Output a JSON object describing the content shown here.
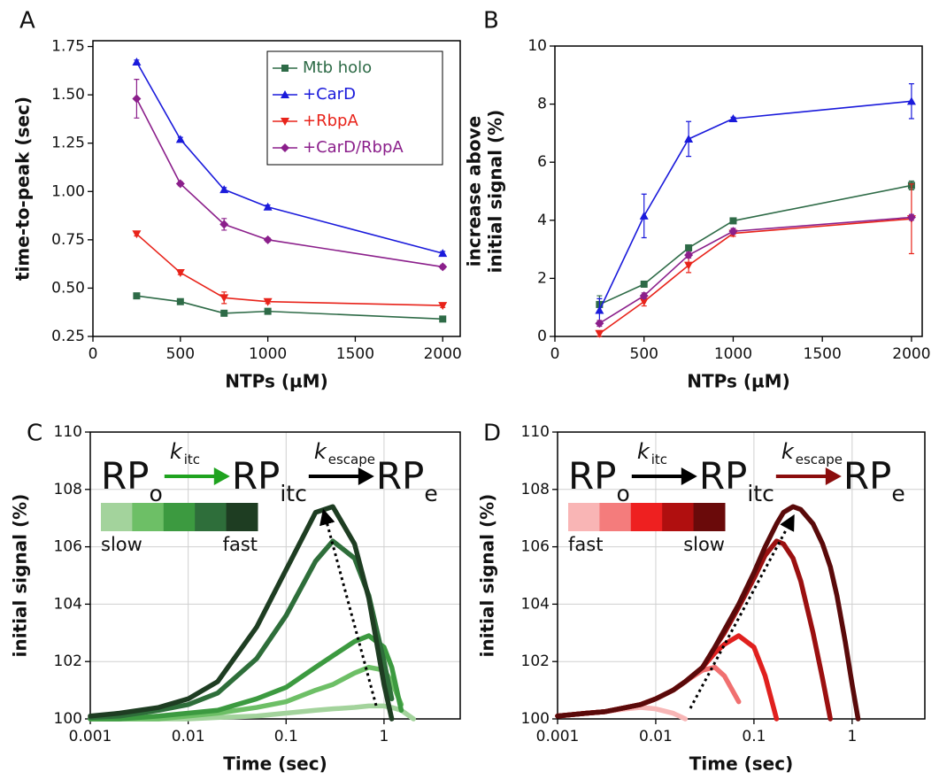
{
  "chart_data": [
    {
      "type": "line",
      "panel": "A",
      "ylabel": [
        "time-to-peak (sec)"
      ],
      "xlabel": "NTPs (µM)",
      "x": [
        250,
        500,
        750,
        1000,
        2000
      ],
      "xlim": [
        0,
        2100
      ],
      "xticks": [
        0,
        500,
        1000,
        1500,
        2000
      ],
      "ylim": [
        0.25,
        1.78
      ],
      "yticks": [
        0.25,
        {
          "value": 0.5,
          "label": "0.50"
        },
        0.75,
        {
          "value": 1,
          "label": "1.00"
        },
        1.25,
        {
          "value": 1.5,
          "label": "1.50"
        },
        1.75
      ],
      "legend": "upper right",
      "series": [
        {
          "name": "Mtb holo",
          "color": "#2e6b47",
          "marker": "square",
          "values": [
            0.46,
            0.43,
            0.37,
            0.38,
            0.34
          ],
          "errors": [
            0.01,
            0.01,
            0.01,
            0.01,
            0.01
          ]
        },
        {
          "name": "+CarD",
          "color": "#1a1adb",
          "marker": "triangle-up",
          "values": [
            1.67,
            1.27,
            1.01,
            0.92,
            0.68
          ],
          "errors": [
            0.01,
            0.01,
            0.01,
            0.01,
            0.01
          ]
        },
        {
          "name": "+RbpA",
          "color": "#e8231a",
          "marker": "triangle-down",
          "values": [
            0.78,
            0.58,
            0.45,
            0.43,
            0.41
          ],
          "errors": [
            0.01,
            0.01,
            0.03,
            0.01,
            0.01
          ]
        },
        {
          "name": "+CarD/RbpA",
          "color": "#8b1f8b",
          "marker": "diamond",
          "values": [
            1.48,
            1.04,
            0.83,
            0.75,
            0.61
          ],
          "errors": [
            0.1,
            0.01,
            0.03,
            0.01,
            0.01
          ]
        }
      ]
    },
    {
      "type": "line",
      "panel": "B",
      "ylabel": [
        "increase above",
        "initial signal (%)"
      ],
      "xlabel": "NTPs (µM)",
      "x": [
        250,
        500,
        750,
        1000,
        2000
      ],
      "xlim": [
        0,
        2060
      ],
      "xticks": [
        0,
        500,
        1000,
        1500,
        2000
      ],
      "ylim": [
        0,
        10
      ],
      "yticks": [
        0,
        2,
        4,
        6,
        8,
        10
      ],
      "series": [
        {
          "color": "#2e6b47",
          "marker": "square",
          "values": [
            1.1,
            1.8,
            3.05,
            3.98,
            5.2
          ],
          "errors": [
            0.3,
            0.1,
            0.1,
            0.05,
            0.15
          ]
        },
        {
          "color": "#1a1adb",
          "marker": "triangle-up",
          "values": [
            0.9,
            4.15,
            6.8,
            7.5,
            8.1
          ],
          "errors": [
            0.4,
            0.75,
            0.6,
            0.05,
            0.6
          ]
        },
        {
          "color": "#e8231a",
          "marker": "triangle-down",
          "values": [
            0.1,
            1.2,
            2.45,
            3.55,
            4.05
          ],
          "errors": [
            0.1,
            0.15,
            0.25,
            0.1,
            1.2
          ]
        },
        {
          "color": "#8b1f8b",
          "marker": "diamond",
          "values": [
            0.45,
            1.4,
            2.8,
            3.62,
            4.1
          ],
          "errors": [
            0.1,
            0.1,
            0.1,
            0.1,
            0.1
          ]
        }
      ]
    },
    {
      "type": "line",
      "panel": "C",
      "ylabel": [
        "initial signal (%)"
      ],
      "xlabel": "Time (sec)",
      "xlog": true,
      "grid": true,
      "x": [
        0.001,
        0.002,
        0.005,
        0.01,
        0.02,
        0.05,
        0.1,
        0.2,
        0.3,
        0.5,
        0.7,
        1,
        1.2,
        1.5,
        2
      ],
      "xlim": [
        0.001,
        6
      ],
      "xticks": [
        0.001,
        0.01,
        0.1,
        1
      ],
      "ylim": [
        100,
        110
      ],
      "yticks": [
        100,
        102,
        104,
        106,
        108,
        110
      ],
      "scheme": {
        "species": [
          {
            "main": "RP",
            "sub": "o"
          },
          {
            "main": "RP",
            "sub": "itc"
          },
          {
            "main": "RP",
            "sub": "e"
          }
        ],
        "rates": [
          {
            "main": "k",
            "sub": "itc"
          },
          {
            "main": "k",
            "sub": "escape"
          }
        ],
        "arrow_colors": [
          "#1fa31f",
          "#000000"
        ]
      },
      "colorbar": {
        "colors": [
          "#a3d39c",
          "#6dbf66",
          "#3c9a40",
          "#2e6e3a",
          "#1e3d22"
        ],
        "labels": [
          "slow",
          "fast"
        ]
      },
      "series": [
        {
          "color": "#a3d39c",
          "values": [
            100,
            100,
            100,
            100,
            100.05,
            100.1,
            100.2,
            100.3,
            100.35,
            100.4,
            100.45,
            100.45,
            100.4,
            100.3,
            100
          ]
        },
        {
          "color": "#6dbf66",
          "values": [
            100,
            100,
            100,
            100.1,
            100.2,
            100.4,
            100.6,
            101,
            101.2,
            101.6,
            101.8,
            101.7,
            101.3,
            100.5,
            null
          ]
        },
        {
          "color": "#3c9a40",
          "values": [
            100,
            100,
            100.1,
            100.2,
            100.3,
            100.7,
            101.1,
            101.8,
            102.2,
            102.7,
            102.9,
            102.5,
            101.8,
            100.3,
            null
          ]
        },
        {
          "color": "#2e6e3a",
          "values": [
            100.05,
            100.1,
            100.3,
            100.5,
            100.9,
            102.1,
            103.6,
            105.5,
            106.2,
            105.6,
            104.3,
            102,
            100.7,
            null,
            null
          ]
        },
        {
          "color": "#1e3d22",
          "values": [
            100.1,
            100.2,
            100.4,
            100.7,
            101.3,
            103.2,
            105.2,
            107.2,
            107.4,
            106.1,
            104.2,
            101.2,
            100,
            null,
            null
          ]
        }
      ]
    },
    {
      "type": "line",
      "panel": "D",
      "ylabel": [
        "initial signal (%)"
      ],
      "xlabel": "Time (sec)",
      "xlog": true,
      "grid": true,
      "x": [
        0.001,
        0.002,
        0.003,
        0.005,
        0.007,
        0.01,
        0.015,
        0.02,
        0.03,
        0.04,
        0.05,
        0.07,
        0.1,
        0.13,
        0.17,
        0.2,
        0.25,
        0.3,
        0.4,
        0.5,
        0.6,
        0.7,
        0.85,
        1,
        1.15
      ],
      "xlim": [
        0.001,
        5.5
      ],
      "xticks": [
        0.001,
        0.01,
        0.1,
        1
      ],
      "ylim": [
        100,
        110
      ],
      "yticks": [
        100,
        102,
        104,
        106,
        108,
        110
      ],
      "scheme": {
        "species": [
          {
            "main": "RP",
            "sub": "o"
          },
          {
            "main": "RP",
            "sub": "itc"
          },
          {
            "main": "RP",
            "sub": "e"
          }
        ],
        "rates": [
          {
            "main": "k",
            "sub": "itc"
          },
          {
            "main": "k",
            "sub": "escape"
          }
        ],
        "arrow_colors": [
          "#000000",
          "#8b0d0d"
        ]
      },
      "colorbar": {
        "colors": [
          "#f9b5b5",
          "#f47c7c",
          "#ee2020",
          "#b00f0f",
          "#6a0a0a"
        ],
        "labels": [
          "fast",
          "slow"
        ]
      },
      "series": [
        {
          "color": "#f7b6b6",
          "values": [
            100.1,
            100.2,
            100.25,
            100.35,
            100.4,
            100.35,
            100.2,
            100,
            null,
            null,
            null,
            null,
            null,
            null,
            null,
            null,
            null,
            null,
            null,
            null,
            null,
            null,
            null,
            null,
            null
          ]
        },
        {
          "color": "#f07070",
          "values": [
            100.1,
            100.2,
            100.25,
            100.4,
            100.5,
            100.7,
            101,
            101.3,
            101.7,
            101.8,
            101.5,
            100.6,
            null,
            null,
            null,
            null,
            null,
            null,
            null,
            null,
            null,
            null,
            null,
            null,
            null
          ]
        },
        {
          "color": "#e0201e",
          "values": [
            100.1,
            100.2,
            100.25,
            100.4,
            100.5,
            100.7,
            101,
            101.3,
            101.8,
            102.3,
            102.6,
            102.9,
            102.5,
            101.5,
            100,
            null,
            null,
            null,
            null,
            null,
            null,
            null,
            null,
            null,
            null
          ]
        },
        {
          "color": "#9b1010",
          "values": [
            100.1,
            100.2,
            100.25,
            100.4,
            100.5,
            100.7,
            101,
            101.3,
            101.8,
            102.5,
            103,
            103.9,
            104.9,
            105.7,
            106.2,
            106.1,
            105.6,
            104.8,
            103,
            101.4,
            100,
            null,
            null,
            null,
            null
          ]
        },
        {
          "color": "#5a0a0a",
          "values": [
            100.1,
            100.2,
            100.25,
            100.4,
            100.5,
            100.7,
            101,
            101.3,
            101.8,
            102.5,
            103.1,
            104,
            105.1,
            106,
            106.8,
            107.2,
            107.4,
            107.3,
            106.8,
            106.1,
            105.3,
            104.3,
            102.7,
            101.2,
            100
          ]
        }
      ]
    }
  ]
}
